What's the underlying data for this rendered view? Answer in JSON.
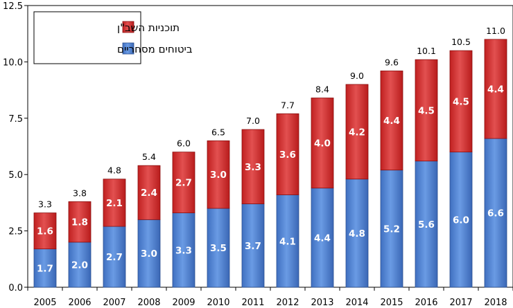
{
  "chart_data": {
    "type": "bar",
    "stacked": true,
    "categories": [
      "2005",
      "2006",
      "2007",
      "2008",
      "2009",
      "2010",
      "2011",
      "2012",
      "2013",
      "2014",
      "2015",
      "2016",
      "2017",
      "2018"
    ],
    "series": [
      {
        "name": "ביטוחים מסחריים",
        "color": "#4a7fd0",
        "values": [
          1.7,
          2.0,
          2.7,
          3.0,
          3.3,
          3.5,
          3.7,
          4.1,
          4.4,
          4.8,
          5.2,
          5.6,
          6.0,
          6.6
        ]
      },
      {
        "name": "תוכניות השב\"ן",
        "color": "#d43030",
        "values": [
          1.6,
          1.8,
          2.1,
          2.4,
          2.7,
          3.0,
          3.3,
          3.6,
          4.0,
          4.2,
          4.4,
          4.5,
          4.5,
          4.4
        ]
      }
    ],
    "totals": [
      "3.3",
      "3.8",
      "4.8",
      "5.4",
      "6.0",
      "6.5",
      "7.0",
      "7.7",
      "8.4",
      "9.0",
      "9.6",
      "10.1",
      "10.5",
      "11.0"
    ],
    "value_labels": {
      "bottom": [
        "1.7",
        "2.0",
        "2.7",
        "3.0",
        "3.3",
        "3.5",
        "3.7",
        "4.1",
        "4.4",
        "4.8",
        "5.2",
        "5.6",
        "6.0",
        "6.6"
      ],
      "top": [
        "1.6",
        "1.8",
        "2.1",
        "2.4",
        "2.7",
        "3.0",
        "3.3",
        "3.6",
        "4.0",
        "4.2",
        "4.4",
        "4.5",
        "4.5",
        "4.4"
      ]
    },
    "ylim": [
      0,
      12.5
    ],
    "yticks": [
      "0.0",
      "2.5",
      "5.0",
      "7.5",
      "10.0",
      "12.5"
    ],
    "grid": false,
    "legend_position": "top-left",
    "title": "",
    "xlabel": "",
    "ylabel": ""
  }
}
